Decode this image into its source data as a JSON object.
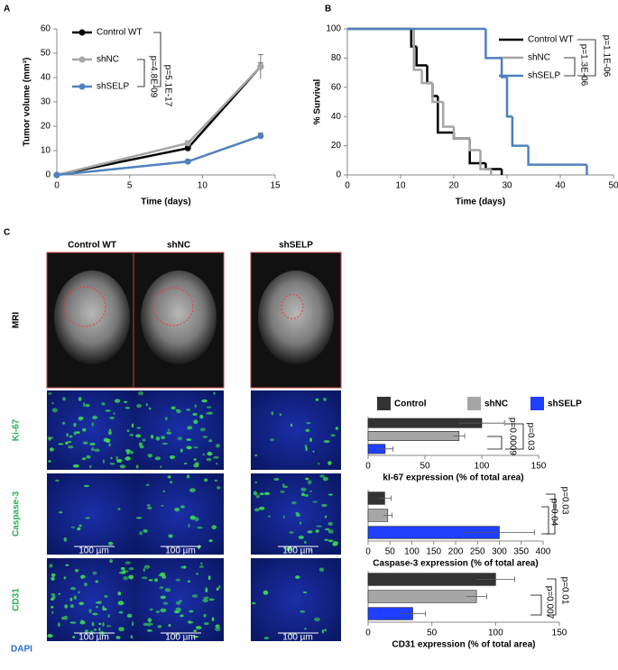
{
  "figure": {
    "panel_labels": [
      "A",
      "B",
      "C"
    ],
    "columns": [
      "Control WT",
      "shNC",
      "shSELP"
    ],
    "rows": [
      "MRI",
      "Ki-67",
      "Caspase-3",
      "CD31"
    ],
    "stain": "DAPI",
    "scale_label": "100 µm",
    "legend": [
      {
        "name": "Control",
        "color": "#333333"
      },
      {
        "name": "shNC",
        "color": "#a6a6a6"
      },
      {
        "name": "shSELP",
        "color": "#1f3fff"
      }
    ]
  },
  "chart_data": [
    {
      "type": "line",
      "xlabel": "Time (days)",
      "ylabel": "Tumor volume (mm³)",
      "x": [
        0,
        9,
        14
      ],
      "series": [
        {
          "name": "Control WT",
          "color": "#000000",
          "values": [
            0,
            11,
            44.5
          ],
          "errors": [
            0,
            1,
            1.5
          ]
        },
        {
          "name": "shNC",
          "color": "#a6a6a6",
          "values": [
            0,
            13,
            44.5
          ],
          "errors": [
            0,
            1,
            5
          ]
        },
        {
          "name": "shSELP",
          "color": "#4f81bd",
          "values": [
            0,
            5.5,
            16
          ],
          "errors": [
            0,
            0.5,
            1.2
          ]
        }
      ],
      "xlim": [
        0,
        15
      ],
      "xticks": [
        0,
        5,
        10,
        15
      ],
      "ylim": [
        0,
        60
      ],
      "yticks": [
        0,
        10,
        20,
        30,
        40,
        50,
        60
      ],
      "legend": "upper left",
      "annotations": [
        "p=5.1E-17",
        "p=4.8E-09"
      ]
    },
    {
      "type": "step",
      "xlabel": "Time (days)",
      "ylabel": "% Survival",
      "series": [
        {
          "name": "Control WT",
          "color": "#000000",
          "x": [
            0,
            12,
            13,
            15,
            16,
            17,
            20,
            23,
            26,
            29
          ],
          "values": [
            100,
            88,
            75,
            63,
            54,
            29,
            25,
            8,
            4,
            0
          ]
        },
        {
          "name": "shNC",
          "color": "#a6a6a6",
          "x": [
            0,
            12.5,
            14,
            16,
            18,
            20,
            23,
            25,
            27
          ],
          "values": [
            100,
            72,
            63,
            50,
            33,
            25,
            17,
            4,
            0
          ]
        },
        {
          "name": "shSELP",
          "color": "#4f81bd",
          "x": [
            0,
            26,
            29,
            30,
            31,
            34,
            45
          ],
          "values": [
            100,
            80,
            67,
            40,
            20,
            7,
            0
          ]
        }
      ],
      "xlim": [
        0,
        50
      ],
      "xticks": [
        0,
        10,
        20,
        30,
        40,
        50
      ],
      "ylim": [
        0,
        100
      ],
      "yticks": [
        0,
        20,
        40,
        60,
        80,
        100
      ],
      "legend": "upper right",
      "annotations": [
        "p=1.1E-06",
        "p=1.3E-06"
      ]
    },
    {
      "type": "hbar",
      "xlabel": "kI-67 expression (% of total area)",
      "values": [
        100,
        80,
        15
      ],
      "errors": [
        20,
        5,
        7
      ],
      "colors": [
        "#333333",
        "#a6a6a6",
        "#1f3fff"
      ],
      "xlim": [
        0,
        150
      ],
      "xticks": [
        0,
        50,
        100,
        150
      ],
      "annotations": [
        "p=0.03",
        "p=0.0009"
      ]
    },
    {
      "type": "hbar",
      "xlabel": "Caspase-3 expression (% of total area)",
      "values": [
        38,
        45,
        300
      ],
      "errors": [
        15,
        10,
        80
      ],
      "colors": [
        "#333333",
        "#a6a6a6",
        "#1f3fff"
      ],
      "xlim": [
        0,
        400
      ],
      "xticks": [
        0,
        50,
        100,
        150,
        200,
        250,
        300,
        350,
        400
      ],
      "annotations": [
        "p=0.03",
        "p=0.04"
      ]
    },
    {
      "type": "hbar",
      "xlabel": "CD31 expression (% of total area)",
      "values": [
        100,
        85,
        35
      ],
      "errors": [
        15,
        8,
        10
      ],
      "colors": [
        "#333333",
        "#a6a6a6",
        "#1f3fff"
      ],
      "xlim": [
        0,
        150
      ],
      "xticks": [
        0,
        50,
        100,
        150
      ],
      "annotations": [
        "p=0.01",
        "p=0.007"
      ]
    }
  ]
}
